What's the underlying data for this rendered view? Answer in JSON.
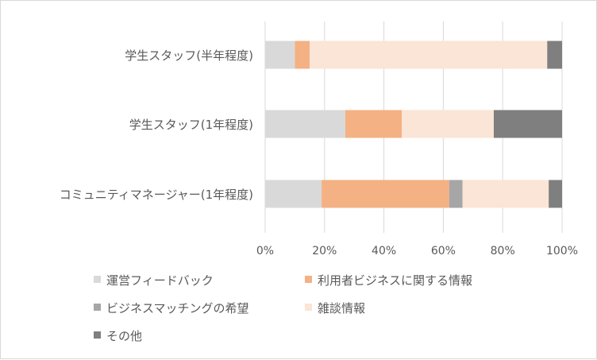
{
  "chart_data": {
    "type": "bar",
    "orientation": "horizontal",
    "stacked": "percent",
    "categories": [
      "学生スタッフ(半年程度)",
      "学生スタッフ(1年程度)",
      "コミュニティマネージャー(1年程度)"
    ],
    "series": [
      {
        "name": "運営フィードバック",
        "color": "#d9d9d9",
        "values": [
          10,
          27,
          19
        ]
      },
      {
        "name": "利用者ビジネスに関する情報",
        "color": "#f4b183",
        "values": [
          5,
          19,
          43
        ]
      },
      {
        "name": "ビジネスマッチングの希望",
        "color": "#a6a6a6",
        "values": [
          0,
          0,
          4.5
        ]
      },
      {
        "name": "雑談情報",
        "color": "#fbe5d6",
        "values": [
          80,
          31,
          29
        ]
      },
      {
        "name": "その他",
        "color": "#7f7f7f",
        "values": [
          5,
          23,
          4.5
        ]
      }
    ],
    "x_ticks": [
      "0%",
      "20%",
      "40%",
      "60%",
      "80%",
      "100%"
    ],
    "xlim": [
      0,
      100
    ],
    "grid": "vertical",
    "legend_position": "bottom"
  }
}
